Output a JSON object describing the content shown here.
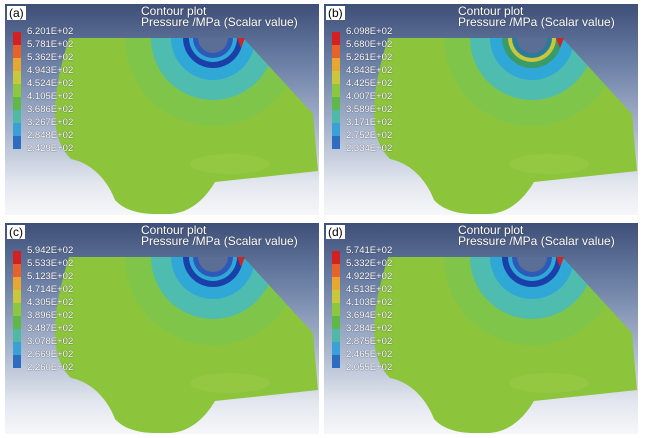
{
  "panels": [
    {
      "label": "(a)",
      "title_line1": "Contour plot",
      "title_line2": "Pressure /MPa (Scalar value)",
      "legend_values": [
        "6.201E+02",
        "5.781E+02",
        "5.362E+02",
        "4.943E+02",
        "4.524E+02",
        "4.105E+02",
        "3.686E+02",
        "3.267E+02",
        "2.848E+02",
        "2.429E+02"
      ],
      "ring_style": "a"
    },
    {
      "label": "(b)",
      "title_line1": "Contour plot",
      "title_line2": "Pressure /MPa (Scalar value)",
      "legend_values": [
        "6.098E+02",
        "5.680E+02",
        "5.261E+02",
        "4.843E+02",
        "4.425E+02",
        "4.007E+02",
        "3.589E+02",
        "3.171E+02",
        "2.752E+02",
        "2.334E+02"
      ],
      "ring_style": "b"
    },
    {
      "label": "(c)",
      "title_line1": "Contour plot",
      "title_line2": "Pressure /MPa (Scalar value)",
      "legend_values": [
        "5.942E+02",
        "5.533E+02",
        "5.123E+02",
        "4.714E+02",
        "4.305E+02",
        "3.896E+02",
        "3.487E+02",
        "3.078E+02",
        "2.669E+02",
        "2.260E+02"
      ],
      "ring_style": "c"
    },
    {
      "label": "(d)",
      "title_line1": "Contour plot",
      "title_line2": "Pressure /MPa (Scalar value)",
      "legend_values": [
        "5.741E+02",
        "5.332E+02",
        "4.922E+02",
        "4.513E+02",
        "4.103E+02",
        "3.694E+02",
        "3.284E+02",
        "2.875E+02",
        "2.465E+02",
        "2.055E+02"
      ],
      "ring_style": "d"
    }
  ],
  "legend_colors": [
    "#d42020",
    "#e8602a",
    "#e8a830",
    "#c9c83a",
    "#8dc63f",
    "#5fb848",
    "#4fb8a6",
    "#3aa0d8",
    "#2d6cc0",
    "#1e3c9a"
  ],
  "colors": {
    "field_green": "#8cc43c",
    "ring_blue": "#1a3fa8",
    "ring_cyan": "#2fa8d8",
    "ring_teal": "#4fbcb0",
    "ring_lightgreen": "#72c050",
    "hot_red": "#c82828"
  }
}
